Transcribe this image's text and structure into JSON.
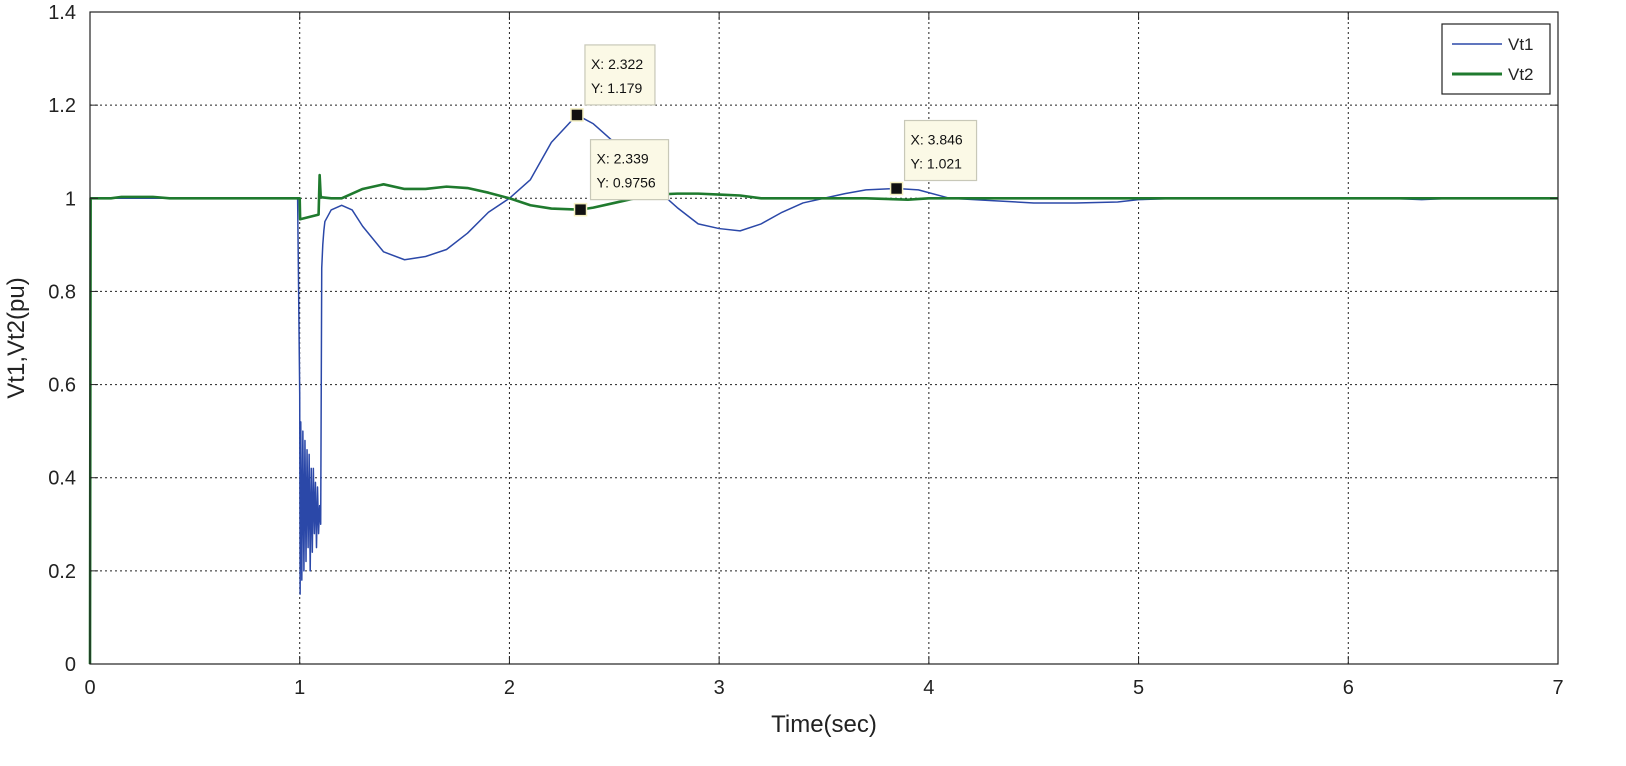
{
  "chart_data": {
    "type": "line",
    "xlabel": "Time(sec)",
    "ylabel": "Vt1,Vt2(pu)",
    "xlim": [
      0,
      7
    ],
    "ylim": [
      0,
      1.4
    ],
    "xticks": [
      0,
      1,
      2,
      3,
      4,
      5,
      6,
      7
    ],
    "yticks": [
      0,
      0.2,
      0.4,
      0.6,
      0.8,
      1,
      1.2,
      1.4
    ],
    "xtick_labels": [
      "0",
      "1",
      "2",
      "3",
      "4",
      "5",
      "6",
      "7"
    ],
    "ytick_labels": [
      "0",
      "0.2",
      "0.4",
      "0.6",
      "0.8",
      "1",
      "1.2",
      "1.4"
    ],
    "grid": true,
    "legend_position": "top-right",
    "series": [
      {
        "name": "Vt1",
        "color": "#2b48a8",
        "x": [
          0,
          0.003,
          0.05,
          0.1,
          0.2,
          0.3,
          0.4,
          0.5,
          0.6,
          0.7,
          0.8,
          0.9,
          0.99,
          1.0,
          1.002,
          1.005,
          1.01,
          1.015,
          1.02,
          1.025,
          1.03,
          1.035,
          1.04,
          1.045,
          1.05,
          1.055,
          1.06,
          1.065,
          1.07,
          1.075,
          1.08,
          1.085,
          1.09,
          1.095,
          1.1,
          1.105,
          1.11,
          1.115,
          1.12,
          1.15,
          1.2,
          1.25,
          1.3,
          1.4,
          1.5,
          1.6,
          1.7,
          1.8,
          1.9,
          2.0,
          2.1,
          2.2,
          2.322,
          2.4,
          2.5,
          2.6,
          2.7,
          2.8,
          2.9,
          3.0,
          3.1,
          3.2,
          3.3,
          3.4,
          3.5,
          3.6,
          3.7,
          3.846,
          3.95,
          4.1,
          4.3,
          4.5,
          4.7,
          4.9,
          5.0,
          5.2,
          5.5,
          5.8,
          6.0,
          6.2,
          6.35,
          6.5,
          7.0
        ],
        "y": [
          0,
          1.0,
          1.0,
          1.0,
          1.0,
          1.0,
          1.0,
          1.0,
          1.0,
          1.0,
          1.0,
          1.0,
          1.0,
          0.58,
          0.15,
          0.52,
          0.18,
          0.5,
          0.2,
          0.48,
          0.22,
          0.46,
          0.25,
          0.45,
          0.2,
          0.42,
          0.24,
          0.42,
          0.28,
          0.39,
          0.25,
          0.38,
          0.28,
          0.34,
          0.3,
          0.85,
          0.9,
          0.93,
          0.95,
          0.975,
          0.985,
          0.975,
          0.94,
          0.885,
          0.868,
          0.875,
          0.89,
          0.925,
          0.97,
          1.0,
          1.04,
          1.12,
          1.179,
          1.16,
          1.12,
          1.07,
          1.02,
          0.98,
          0.945,
          0.935,
          0.93,
          0.945,
          0.97,
          0.99,
          1.0,
          1.01,
          1.018,
          1.021,
          1.018,
          1.0,
          0.995,
          0.99,
          0.99,
          0.992,
          0.997,
          1.0,
          1.0,
          1.0,
          1.0,
          1.0,
          0.997,
          1.0,
          1.0
        ]
      },
      {
        "name": "Vt2",
        "color": "#1f7a2e",
        "x": [
          0,
          0.003,
          0.1,
          0.15,
          0.3,
          0.38,
          0.4,
          0.9,
          0.99,
          1.0,
          1.002,
          1.09,
          1.095,
          1.1,
          1.105,
          1.15,
          1.2,
          1.3,
          1.4,
          1.5,
          1.6,
          1.7,
          1.8,
          1.9,
          2.0,
          2.1,
          2.2,
          2.339,
          2.4,
          2.5,
          2.6,
          2.7,
          2.8,
          2.9,
          3.0,
          3.1,
          3.2,
          3.3,
          3.5,
          3.7,
          3.9,
          4.0,
          4.5,
          5.0,
          6.0,
          7.0
        ],
        "y": [
          0,
          1.0,
          1.0,
          1.003,
          1.003,
          1.0,
          1.0,
          1.0,
          1.0,
          1.0,
          0.955,
          0.965,
          1.05,
          1.005,
          1.002,
          1.0,
          1.0,
          1.02,
          1.03,
          1.02,
          1.02,
          1.025,
          1.022,
          1.012,
          1.0,
          0.985,
          0.978,
          0.9756,
          0.98,
          0.99,
          1.0,
          1.008,
          1.01,
          1.01,
          1.008,
          1.006,
          1.0,
          1.0,
          1.0,
          1.0,
          0.997,
          1.0,
          1.0,
          1.0,
          1.0,
          1.0
        ]
      }
    ],
    "annotations": [
      {
        "series": "Vt1",
        "x": 2.322,
        "y": 1.179,
        "line1": "X: 2.322",
        "line2": "Y: 1.179"
      },
      {
        "series": "Vt2",
        "x": 2.339,
        "y": 0.9756,
        "line1": "X: 2.339",
        "line2": "Y: 0.9756"
      },
      {
        "series": "Vt1",
        "x": 3.846,
        "y": 1.021,
        "line1": "X: 3.846",
        "line2": "Y: 1.021"
      }
    ]
  }
}
